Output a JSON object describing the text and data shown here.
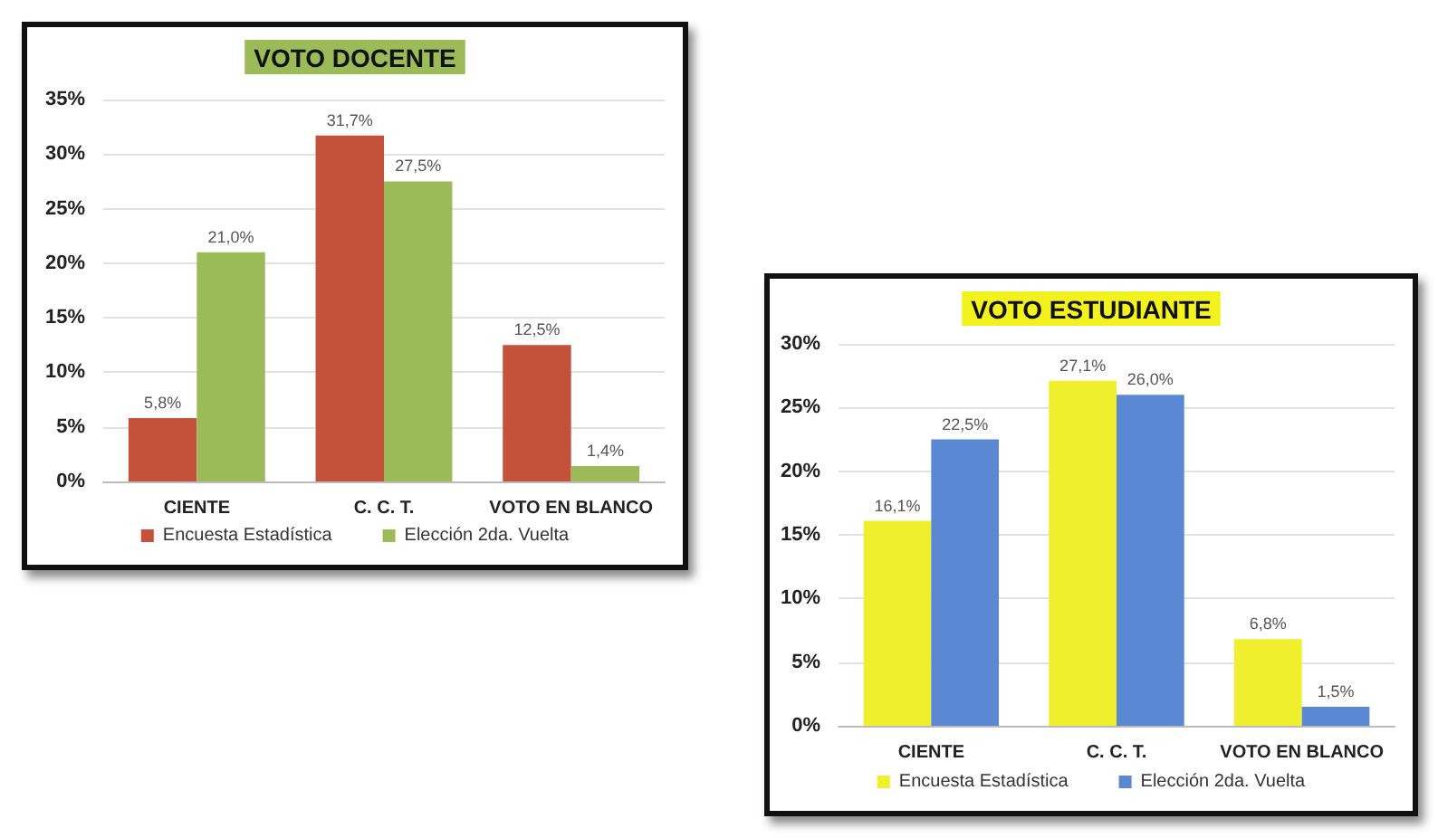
{
  "chart_data": [
    {
      "type": "bar",
      "title": "VOTO DOCENTE",
      "categories": [
        "CIENTE",
        "C. C. T.",
        "VOTO EN BLANCO"
      ],
      "series": [
        {
          "name": "Encuesta Estadística",
          "color": "#c4523a",
          "values": [
            5.8,
            31.7,
            12.5
          ],
          "value_labels": [
            "5,8%",
            "31,7%",
            "12,5%"
          ]
        },
        {
          "name": "Elección 2da. Vuelta",
          "color": "#9bbb59",
          "values": [
            21.0,
            27.5,
            1.4
          ],
          "value_labels": [
            "21,0%",
            "27,5%",
            "1,4%"
          ]
        }
      ],
      "ylim": [
        0,
        35
      ],
      "yticks": [
        {
          "value": 0,
          "label": "0%"
        },
        {
          "value": 5,
          "label": "5%"
        },
        {
          "value": 10,
          "label": "10%"
        },
        {
          "value": 15,
          "label": "15%"
        },
        {
          "value": 20,
          "label": "20%"
        },
        {
          "value": 25,
          "label": "25%"
        },
        {
          "value": 30,
          "label": "30%"
        },
        {
          "value": 35,
          "label": "35%"
        }
      ],
      "grid": "y",
      "legend": "bottom"
    },
    {
      "type": "bar",
      "title": "VOTO ESTUDIANTE",
      "categories": [
        "CIENTE",
        "C. C. T.",
        "VOTO EN BLANCO"
      ],
      "series": [
        {
          "name": "Encuesta Estadística",
          "color": "#f0ef2e",
          "values": [
            16.1,
            27.1,
            6.8
          ],
          "value_labels": [
            "16,1%",
            "27,1%",
            "6,8%"
          ]
        },
        {
          "name": "Elección 2da. Vuelta",
          "color": "#5b88d2",
          "values": [
            22.5,
            26.0,
            1.5
          ],
          "value_labels": [
            "22,5%",
            "26,0%",
            "1,5%"
          ]
        }
      ],
      "ylim": [
        0,
        30
      ],
      "yticks": [
        {
          "value": 0,
          "label": "0%"
        },
        {
          "value": 5,
          "label": "5%"
        },
        {
          "value": 10,
          "label": "10%"
        },
        {
          "value": 15,
          "label": "15%"
        },
        {
          "value": 20,
          "label": "20%"
        },
        {
          "value": 25,
          "label": "25%"
        },
        {
          "value": 30,
          "label": "30%"
        }
      ],
      "grid": "y",
      "legend": "bottom"
    }
  ]
}
